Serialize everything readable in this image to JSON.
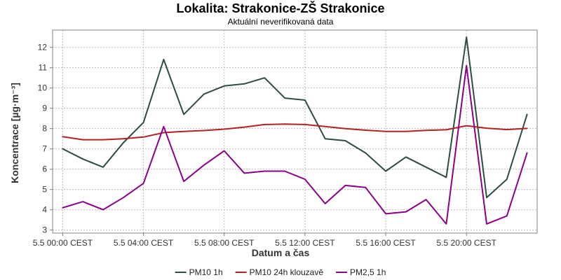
{
  "chart_data": {
    "type": "line",
    "title": "Lokalita: Strakonice-ZŠ Strakonice",
    "subtitle": "Aktuální neverifikovaná data",
    "xlabel": "Datum a čas",
    "ylabel": "Koncentrace [µg·m⁻³]",
    "ylim": [
      2.85,
      12.85
    ],
    "yticks": [
      3,
      4,
      5,
      6,
      7,
      8,
      9,
      10,
      11,
      12
    ],
    "x_hours": [
      0,
      1,
      2,
      3,
      4,
      5,
      6,
      7,
      8,
      9,
      10,
      11,
      12,
      13,
      14,
      15,
      16,
      17,
      18,
      19,
      20,
      21,
      22,
      23
    ],
    "x_range": [
      -0.5,
      23.5
    ],
    "xticks": [
      {
        "hour": 0,
        "label": "5.5 00:00 CEST"
      },
      {
        "hour": 4,
        "label": "5.5 04:00 CEST"
      },
      {
        "hour": 8,
        "label": "5.5 08:00 CEST"
      },
      {
        "hour": 12,
        "label": "5.5 12:00 CEST"
      },
      {
        "hour": 16,
        "label": "5.5 16:00 CEST"
      },
      {
        "hour": 20,
        "label": "5.5 20:00 CEST"
      }
    ],
    "grid": true,
    "legend": "bottom",
    "series": [
      {
        "name": "PM10 1h",
        "color": "#2e4b45",
        "values": [
          7.0,
          6.5,
          6.1,
          7.3,
          8.3,
          11.4,
          8.7,
          9.7,
          10.1,
          10.2,
          10.5,
          9.5,
          9.4,
          7.5,
          7.4,
          6.8,
          5.9,
          6.6,
          6.1,
          5.6,
          12.5,
          4.6,
          5.5,
          8.7
        ]
      },
      {
        "name": "PM10 24h klouzavě",
        "color": "#b22222",
        "values": [
          7.6,
          7.45,
          7.45,
          7.5,
          7.58,
          7.8,
          7.86,
          7.9,
          7.97,
          8.07,
          8.2,
          8.22,
          8.2,
          8.1,
          8.0,
          7.92,
          7.86,
          7.86,
          7.91,
          7.94,
          8.14,
          8.02,
          7.95,
          8.01
        ]
      },
      {
        "name": "PM2,5 1h",
        "color": "#8b008b",
        "values": [
          4.1,
          4.4,
          4.0,
          4.6,
          5.3,
          8.1,
          5.4,
          6.2,
          6.9,
          5.8,
          5.9,
          5.9,
          5.5,
          4.3,
          5.2,
          5.1,
          3.8,
          3.9,
          4.5,
          3.3,
          11.1,
          3.3,
          3.7,
          6.8
        ]
      }
    ]
  }
}
